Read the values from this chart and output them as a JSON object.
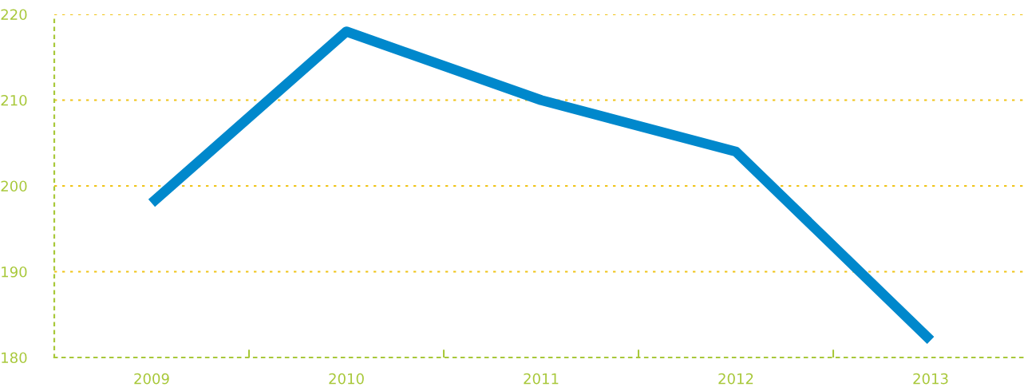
{
  "chart_data": {
    "type": "line",
    "categories": [
      "2009",
      "2010",
      "2011",
      "2012",
      "2013"
    ],
    "series": [
      {
        "color": "#0088cc",
        "values": [
          198,
          218,
          210,
          204,
          182
        ]
      }
    ],
    "ylim": [
      180,
      220
    ],
    "yticks": [
      180,
      190,
      200,
      210,
      220
    ],
    "grid": "y",
    "marker": "none",
    "line_style": "solid",
    "legend": false
  }
}
